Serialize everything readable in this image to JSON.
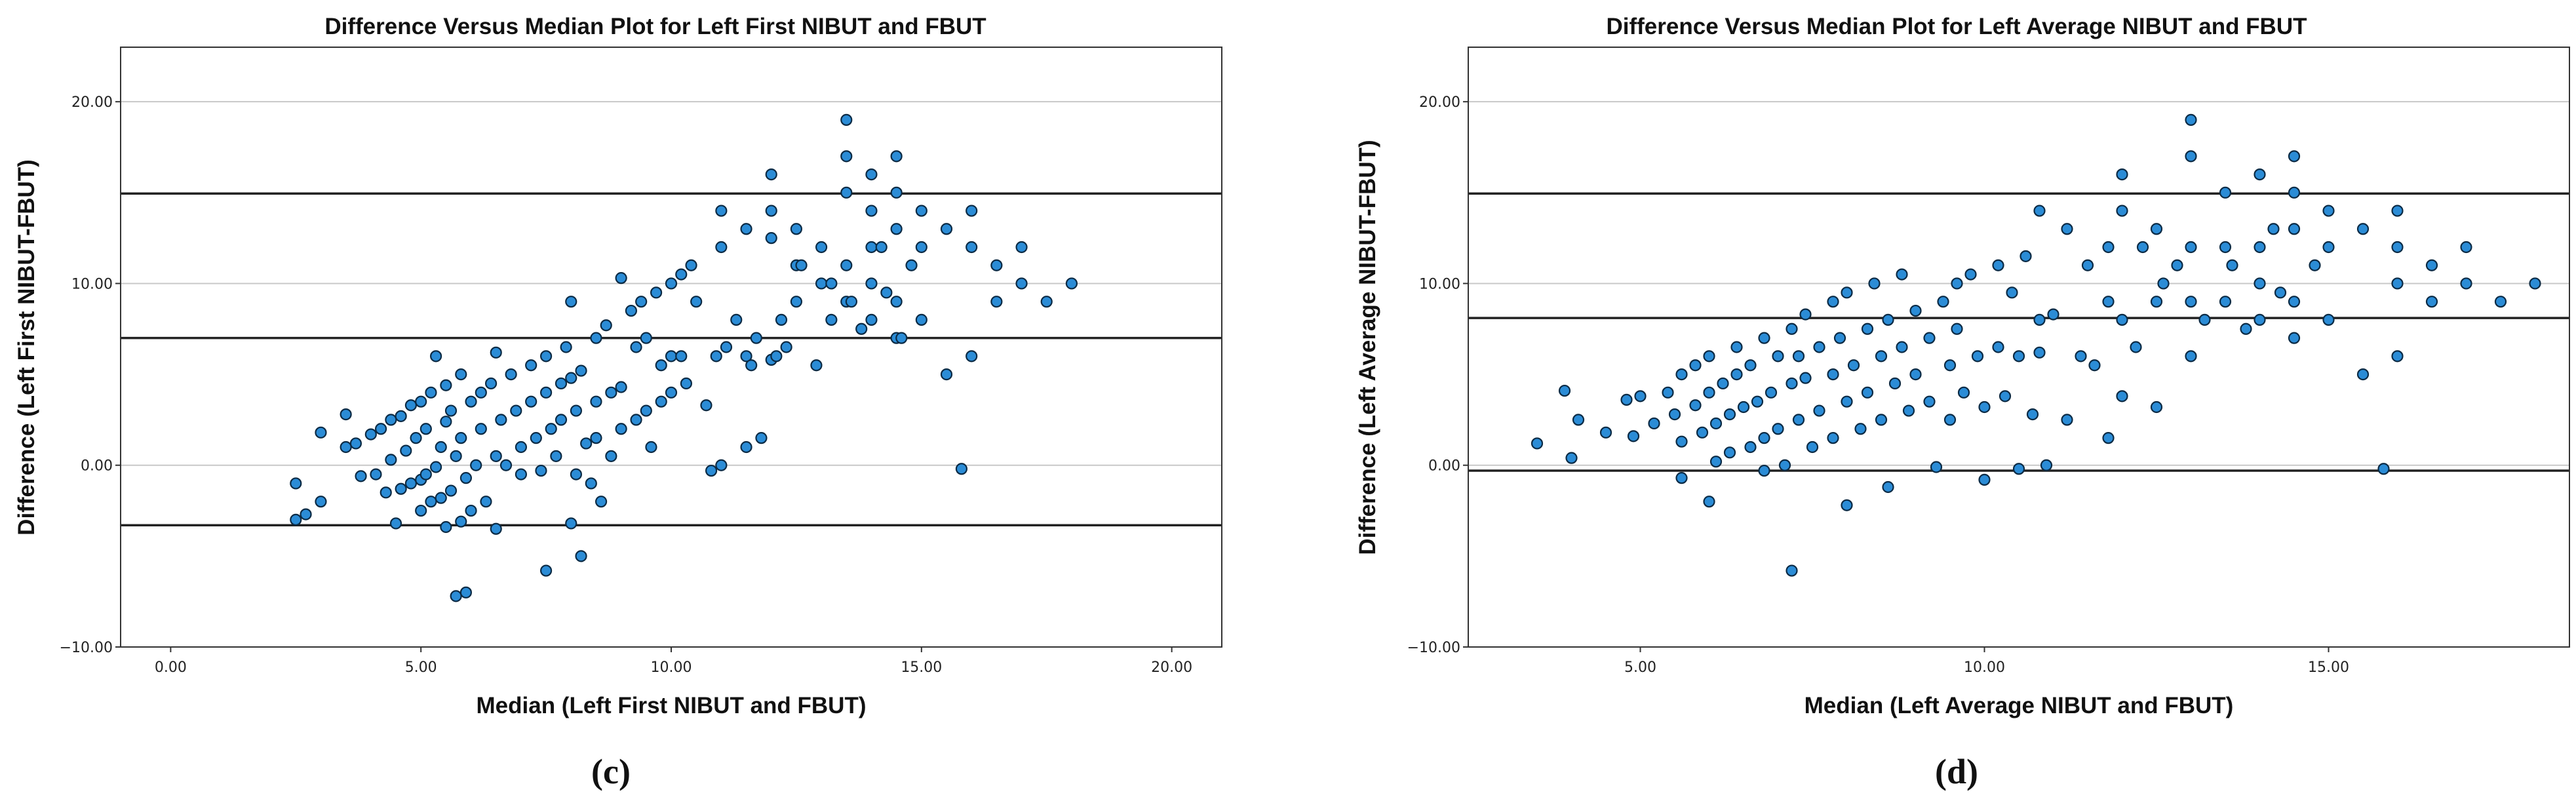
{
  "chart_data": [
    {
      "type": "scatter",
      "title": "Difference Versus Median Plot for Left First NIBUT and FBUT",
      "xlabel": "Median (Left First NIBUT and FBUT)",
      "ylabel": "Difference (Left First NIBUT-FBUT)",
      "panel_label": "(c)",
      "xlim": [
        -1.0,
        21.0
      ],
      "ylim": [
        -10.0,
        23.0
      ],
      "xticks": [
        0,
        5,
        10,
        15,
        20
      ],
      "xtick_labels": [
        "0.00",
        "5.00",
        "10.00",
        "15.00",
        "20.00"
      ],
      "yticks": [
        -10,
        0,
        10,
        20
      ],
      "ytick_labels": [
        "−10.00",
        "0.00",
        "10.00",
        "20.00"
      ],
      "grid": "horizontal",
      "reference_lines": [
        14.95,
        7.0,
        -3.3
      ],
      "point_color": "#2b8cd6",
      "points": [
        [
          2.5,
          -1.0
        ],
        [
          2.5,
          -3.0
        ],
        [
          2.7,
          -2.7
        ],
        [
          3.0,
          -2.0
        ],
        [
          3.0,
          1.8
        ],
        [
          3.5,
          2.8
        ],
        [
          3.5,
          1.0
        ],
        [
          3.7,
          1.2
        ],
        [
          3.8,
          -0.6
        ],
        [
          4.0,
          1.7
        ],
        [
          4.1,
          -0.5
        ],
        [
          4.2,
          2.0
        ],
        [
          4.3,
          -1.5
        ],
        [
          4.4,
          2.5
        ],
        [
          4.4,
          0.3
        ],
        [
          4.5,
          -3.2
        ],
        [
          4.6,
          -1.3
        ],
        [
          4.6,
          2.7
        ],
        [
          4.7,
          0.8
        ],
        [
          4.8,
          -1.0
        ],
        [
          4.8,
          3.3
        ],
        [
          4.9,
          1.5
        ],
        [
          5.0,
          -0.8
        ],
        [
          5.0,
          3.5
        ],
        [
          5.0,
          -2.5
        ],
        [
          5.1,
          -0.5
        ],
        [
          5.1,
          2.0
        ],
        [
          5.2,
          -2.0
        ],
        [
          5.2,
          4.0
        ],
        [
          5.3,
          -0.1
        ],
        [
          5.3,
          6.0
        ],
        [
          5.4,
          1.0
        ],
        [
          5.4,
          -1.8
        ],
        [
          5.5,
          4.4
        ],
        [
          5.5,
          2.4
        ],
        [
          5.5,
          -3.4
        ],
        [
          5.6,
          -1.4
        ],
        [
          5.6,
          3.0
        ],
        [
          5.7,
          -7.2
        ],
        [
          5.7,
          0.5
        ],
        [
          5.8,
          -3.1
        ],
        [
          5.8,
          5.0
        ],
        [
          5.8,
          1.5
        ],
        [
          5.9,
          -7.0
        ],
        [
          5.9,
          -0.7
        ],
        [
          6.0,
          3.5
        ],
        [
          6.0,
          -2.5
        ],
        [
          6.1,
          0.0
        ],
        [
          6.2,
          4.0
        ],
        [
          6.2,
          2.0
        ],
        [
          6.3,
          -2.0
        ],
        [
          6.4,
          4.5
        ],
        [
          6.5,
          6.2
        ],
        [
          6.5,
          0.5
        ],
        [
          6.5,
          -3.5
        ],
        [
          6.6,
          2.5
        ],
        [
          6.7,
          0.0
        ],
        [
          6.8,
          5.0
        ],
        [
          6.9,
          3.0
        ],
        [
          7.0,
          1.0
        ],
        [
          7.0,
          -0.5
        ],
        [
          7.2,
          5.5
        ],
        [
          7.2,
          3.5
        ],
        [
          7.3,
          1.5
        ],
        [
          7.4,
          -0.3
        ],
        [
          7.5,
          6.0
        ],
        [
          7.5,
          4.0
        ],
        [
          7.5,
          -5.8
        ],
        [
          7.6,
          2.0
        ],
        [
          7.7,
          0.5
        ],
        [
          7.8,
          4.5
        ],
        [
          7.8,
          2.5
        ],
        [
          7.9,
          6.5
        ],
        [
          8.0,
          4.8
        ],
        [
          8.0,
          9.0
        ],
        [
          8.0,
          -3.2
        ],
        [
          8.1,
          -0.5
        ],
        [
          8.1,
          3.0
        ],
        [
          8.2,
          5.2
        ],
        [
          8.2,
          -5.0
        ],
        [
          8.3,
          1.2
        ],
        [
          8.4,
          -1.0
        ],
        [
          8.5,
          7.0
        ],
        [
          8.5,
          3.5
        ],
        [
          8.5,
          1.5
        ],
        [
          8.6,
          -2.0
        ],
        [
          8.7,
          7.7
        ],
        [
          8.8,
          4.0
        ],
        [
          8.8,
          0.5
        ],
        [
          9.0,
          10.3
        ],
        [
          9.0,
          4.3
        ],
        [
          9.0,
          2.0
        ],
        [
          9.2,
          8.5
        ],
        [
          9.3,
          6.5
        ],
        [
          9.3,
          2.5
        ],
        [
          9.4,
          9.0
        ],
        [
          9.5,
          7.0
        ],
        [
          9.5,
          3.0
        ],
        [
          9.6,
          1.0
        ],
        [
          9.7,
          9.5
        ],
        [
          9.8,
          5.5
        ],
        [
          9.8,
          3.5
        ],
        [
          10.0,
          10.0
        ],
        [
          10.0,
          6.0
        ],
        [
          10.0,
          4.0
        ],
        [
          10.2,
          10.5
        ],
        [
          10.2,
          6.0
        ],
        [
          10.3,
          4.5
        ],
        [
          10.4,
          11.0
        ],
        [
          10.5,
          9.0
        ],
        [
          10.7,
          3.3
        ],
        [
          10.8,
          -0.3
        ],
        [
          10.9,
          6.0
        ],
        [
          11.0,
          14.0
        ],
        [
          11.0,
          12.0
        ],
        [
          11.0,
          0.0
        ],
        [
          11.1,
          6.5
        ],
        [
          11.3,
          8.0
        ],
        [
          11.5,
          13.0
        ],
        [
          11.5,
          6.0
        ],
        [
          11.5,
          1.0
        ],
        [
          11.6,
          5.5
        ],
        [
          11.7,
          7.0
        ],
        [
          11.8,
          1.5
        ],
        [
          12.0,
          16.0
        ],
        [
          12.0,
          12.5
        ],
        [
          12.0,
          14.0
        ],
        [
          12.0,
          5.8
        ],
        [
          12.1,
          6.0
        ],
        [
          12.2,
          8.0
        ],
        [
          12.3,
          6.5
        ],
        [
          12.5,
          13.0
        ],
        [
          12.5,
          11.0
        ],
        [
          12.5,
          9.0
        ],
        [
          12.6,
          11.0
        ],
        [
          12.9,
          5.5
        ],
        [
          13.0,
          12.0
        ],
        [
          13.0,
          10.0
        ],
        [
          13.2,
          10.0
        ],
        [
          13.2,
          8.0
        ],
        [
          13.5,
          19.0
        ],
        [
          13.5,
          17.0
        ],
        [
          13.5,
          15.0
        ],
        [
          13.5,
          11.0
        ],
        [
          13.5,
          9.0
        ],
        [
          13.6,
          9.0
        ],
        [
          13.8,
          7.5
        ],
        [
          14.0,
          16.0
        ],
        [
          14.0,
          14.0
        ],
        [
          14.0,
          12.0
        ],
        [
          14.0,
          10.0
        ],
        [
          14.0,
          8.0
        ],
        [
          14.2,
          12.0
        ],
        [
          14.3,
          9.5
        ],
        [
          14.5,
          17.0
        ],
        [
          14.5,
          15.0
        ],
        [
          14.5,
          13.0
        ],
        [
          14.5,
          9.0
        ],
        [
          14.5,
          7.0
        ],
        [
          14.6,
          7.0
        ],
        [
          14.8,
          11.0
        ],
        [
          15.0,
          14.0
        ],
        [
          15.0,
          12.0
        ],
        [
          15.0,
          8.0
        ],
        [
          15.5,
          13.0
        ],
        [
          15.5,
          5.0
        ],
        [
          15.8,
          -0.2
        ],
        [
          16.0,
          14.0
        ],
        [
          16.0,
          12.0
        ],
        [
          16.0,
          6.0
        ],
        [
          16.5,
          11.0
        ],
        [
          16.5,
          9.0
        ],
        [
          17.0,
          12.0
        ],
        [
          17.0,
          10.0
        ],
        [
          17.5,
          9.0
        ],
        [
          18.0,
          10.0
        ]
      ]
    },
    {
      "type": "scatter",
      "title": "Difference Versus Median Plot for Left Average NIBUT and FBUT",
      "xlabel": "Median (Left Average NIBUT and FBUT)",
      "ylabel": "Difference (Left Average NIBUT-FBUT)",
      "panel_label": "(d)",
      "xlim": [
        2.5,
        18.5
      ],
      "ylim": [
        -10.0,
        23.0
      ],
      "xticks": [
        5,
        10,
        15
      ],
      "xtick_labels": [
        "5.00",
        "10.00",
        "15.00"
      ],
      "yticks": [
        -10,
        0,
        10,
        20
      ],
      "ytick_labels": [
        "−10.00",
        "0.00",
        "10.00",
        "20.00"
      ],
      "grid": "horizontal",
      "reference_lines": [
        14.95,
        8.1,
        -0.3
      ],
      "point_color": "#2b8cd6",
      "points": [
        [
          3.5,
          1.2
        ],
        [
          3.9,
          4.1
        ],
        [
          4.0,
          0.4
        ],
        [
          4.1,
          2.5
        ],
        [
          4.5,
          1.8
        ],
        [
          4.8,
          3.6
        ],
        [
          4.9,
          1.6
        ],
        [
          5.0,
          3.8
        ],
        [
          5.2,
          2.3
        ],
        [
          5.4,
          4.0
        ],
        [
          5.5,
          2.8
        ],
        [
          5.6,
          5.0
        ],
        [
          5.6,
          1.3
        ],
        [
          5.6,
          -0.7
        ],
        [
          5.8,
          3.3
        ],
        [
          5.8,
          5.5
        ],
        [
          5.9,
          1.8
        ],
        [
          6.0,
          6.0
        ],
        [
          6.0,
          4.0
        ],
        [
          6.0,
          -2.0
        ],
        [
          6.1,
          2.3
        ],
        [
          6.1,
          0.2
        ],
        [
          6.2,
          4.5
        ],
        [
          6.3,
          2.8
        ],
        [
          6.3,
          0.7
        ],
        [
          6.4,
          6.5
        ],
        [
          6.4,
          5.0
        ],
        [
          6.5,
          3.2
        ],
        [
          6.6,
          1.0
        ],
        [
          6.6,
          5.5
        ],
        [
          6.7,
          3.5
        ],
        [
          6.8,
          1.5
        ],
        [
          6.8,
          7.0
        ],
        [
          6.8,
          -0.3
        ],
        [
          6.9,
          4.0
        ],
        [
          7.0,
          2.0
        ],
        [
          7.0,
          6.0
        ],
        [
          7.1,
          0.0
        ],
        [
          7.2,
          7.5
        ],
        [
          7.2,
          4.5
        ],
        [
          7.2,
          -5.8
        ],
        [
          7.3,
          6.0
        ],
        [
          7.3,
          2.5
        ],
        [
          7.4,
          8.3
        ],
        [
          7.4,
          4.8
        ],
        [
          7.5,
          1.0
        ],
        [
          7.6,
          6.5
        ],
        [
          7.6,
          3.0
        ],
        [
          7.8,
          9.0
        ],
        [
          7.8,
          5.0
        ],
        [
          7.8,
          1.5
        ],
        [
          7.9,
          7.0
        ],
        [
          8.0,
          3.5
        ],
        [
          8.0,
          9.5
        ],
        [
          8.0,
          -2.2
        ],
        [
          8.1,
          5.5
        ],
        [
          8.2,
          2.0
        ],
        [
          8.3,
          7.5
        ],
        [
          8.3,
          4.0
        ],
        [
          8.4,
          10.0
        ],
        [
          8.5,
          6.0
        ],
        [
          8.5,
          2.5
        ],
        [
          8.6,
          8.0
        ],
        [
          8.6,
          -1.2
        ],
        [
          8.7,
          4.5
        ],
        [
          8.8,
          10.5
        ],
        [
          8.8,
          6.5
        ],
        [
          8.9,
          3.0
        ],
        [
          9.0,
          8.5
        ],
        [
          9.0,
          5.0
        ],
        [
          9.2,
          7.0
        ],
        [
          9.2,
          3.5
        ],
        [
          9.3,
          -0.1
        ],
        [
          9.4,
          9.0
        ],
        [
          9.5,
          5.5
        ],
        [
          9.5,
          2.5
        ],
        [
          9.6,
          10.0
        ],
        [
          9.6,
          7.5
        ],
        [
          9.7,
          4.0
        ],
        [
          9.8,
          10.5
        ],
        [
          9.9,
          6.0
        ],
        [
          10.0,
          -0.8
        ],
        [
          10.0,
          3.2
        ],
        [
          10.2,
          11.0
        ],
        [
          10.2,
          6.5
        ],
        [
          10.3,
          3.8
        ],
        [
          10.4,
          9.5
        ],
        [
          10.5,
          -0.2
        ],
        [
          10.5,
          6.0
        ],
        [
          10.6,
          11.5
        ],
        [
          10.7,
          2.8
        ],
        [
          10.8,
          6.2
        ],
        [
          10.8,
          14.0
        ],
        [
          10.8,
          8.0
        ],
        [
          10.9,
          0.0
        ],
        [
          11.0,
          8.3
        ],
        [
          11.2,
          2.5
        ],
        [
          11.2,
          13.0
        ],
        [
          11.4,
          6.0
        ],
        [
          11.5,
          11.0
        ],
        [
          11.6,
          5.5
        ],
        [
          11.8,
          1.5
        ],
        [
          11.8,
          9.0
        ],
        [
          11.8,
          12.0
        ],
        [
          12.0,
          16.0
        ],
        [
          12.0,
          14.0
        ],
        [
          12.0,
          3.8
        ],
        [
          12.0,
          8.0
        ],
        [
          12.2,
          6.5
        ],
        [
          12.3,
          12.0
        ],
        [
          12.5,
          9.0
        ],
        [
          12.5,
          13.0
        ],
        [
          12.5,
          3.2
        ],
        [
          12.6,
          10.0
        ],
        [
          12.8,
          11.0
        ],
        [
          13.0,
          12.0
        ],
        [
          13.0,
          6.0
        ],
        [
          13.0,
          17.0
        ],
        [
          13.0,
          19.0
        ],
        [
          13.0,
          9.0
        ],
        [
          13.2,
          8.0
        ],
        [
          13.5,
          15.0
        ],
        [
          13.5,
          12.0
        ],
        [
          13.5,
          9.0
        ],
        [
          13.6,
          11.0
        ],
        [
          13.8,
          7.5
        ],
        [
          14.0,
          16.0
        ],
        [
          14.0,
          12.0
        ],
        [
          14.0,
          10.0
        ],
        [
          14.0,
          8.0
        ],
        [
          14.2,
          13.0
        ],
        [
          14.3,
          9.5
        ],
        [
          14.5,
          17.0
        ],
        [
          14.5,
          15.0
        ],
        [
          14.5,
          13.0
        ],
        [
          14.5,
          9.0
        ],
        [
          14.5,
          7.0
        ],
        [
          14.8,
          11.0
        ],
        [
          15.0,
          14.0
        ],
        [
          15.0,
          12.0
        ],
        [
          15.0,
          8.0
        ],
        [
          15.5,
          13.0
        ],
        [
          15.5,
          5.0
        ],
        [
          15.8,
          -0.2
        ],
        [
          16.0,
          14.0
        ],
        [
          16.0,
          12.0
        ],
        [
          16.0,
          6.0
        ],
        [
          16.0,
          10.0
        ],
        [
          16.5,
          11.0
        ],
        [
          16.5,
          9.0
        ],
        [
          17.0,
          12.0
        ],
        [
          17.0,
          10.0
        ],
        [
          17.5,
          9.0
        ],
        [
          18.0,
          10.0
        ]
      ]
    }
  ]
}
